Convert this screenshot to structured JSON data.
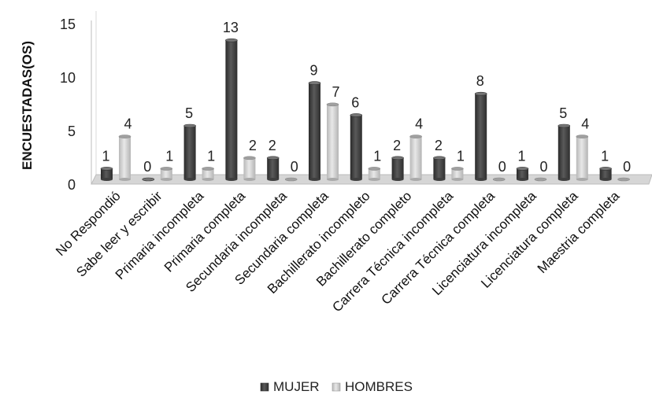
{
  "chart_data": {
    "type": "bar",
    "categories": [
      "No Respondió",
      "Sabe leer y escribir",
      "Primaria incompleta",
      "Primaria completa",
      "Secundaria incompleta",
      "Secundaria completa",
      "Bachillerato incompleto",
      "Bachillerato completo",
      "Carrera Técnica incompleta",
      "Carrera Técnica completa",
      "Licenciatura incompleta",
      "Licenciatura completa",
      "Maestria completa"
    ],
    "series": [
      {
        "name": "MUJER",
        "values": [
          1,
          0,
          5,
          13,
          2,
          9,
          6,
          2,
          2,
          8,
          1,
          5,
          1
        ]
      },
      {
        "name": "HOMBRES",
        "values": [
          4,
          1,
          1,
          2,
          0,
          7,
          1,
          4,
          1,
          0,
          0,
          4,
          0
        ]
      }
    ],
    "ylabel": "ENCUESTADAS(OS)",
    "xlabel": "",
    "title": "",
    "ylim": [
      0,
      15
    ],
    "yticks": [
      0,
      5,
      10,
      15
    ],
    "grid": false,
    "legend_position": "bottom",
    "colors": {
      "MUJER": "#4a4a4a",
      "HOMBRES": "#c8c8c8"
    }
  }
}
